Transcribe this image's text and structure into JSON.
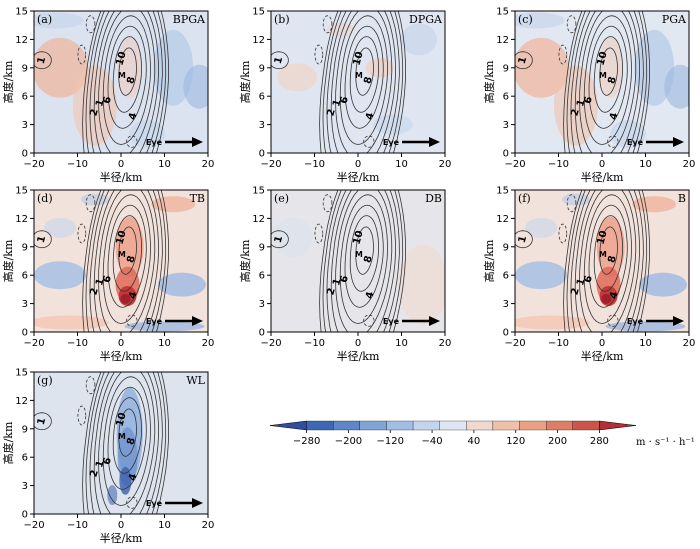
{
  "colors": {
    "neg_strong": "#3a5fae",
    "neg_mid": "#8fb0dd",
    "neg_weak": "#c8d9ee",
    "neutral": "#dcdcdc",
    "pos_weak": "#f2cdbd",
    "pos_mid": "#eb9a82",
    "pos_strong": "#c8393a",
    "contour": "#333333"
  },
  "colorbar": {
    "levels": [
      -280,
      -200,
      -120,
      -40,
      40,
      120,
      200,
      280
    ],
    "tick_labels": [
      "−280",
      "−200",
      "−120",
      "−40",
      "40",
      "120",
      "200",
      "280"
    ],
    "units": "m · s⁻¹ · h⁻¹",
    "colors": [
      "#2f4e9c",
      "#3c68b6",
      "#5c87c9",
      "#7ea4d8",
      "#a1bee4",
      "#c3d5ee",
      "#dde6f2",
      "#f0d8cc",
      "#f2c0a8",
      "#eca081",
      "#e07e63",
      "#cc5548",
      "#b12f36"
    ]
  },
  "chart_data": [
    {
      "type": "heatmap",
      "letter": "(a)",
      "name": "BPGA",
      "xlabel": "半径/km",
      "ylabel": "高度/km",
      "xlim": [
        -20,
        20
      ],
      "ylim": [
        0,
        15
      ],
      "xticks": [
        "−20",
        "−10",
        "0",
        "10",
        "20"
      ],
      "yticks": [
        "0",
        "3",
        "6",
        "9",
        "12",
        "15"
      ],
      "pattern": "bpga",
      "eye_label": "Eye"
    },
    {
      "type": "heatmap",
      "letter": "(b)",
      "name": "DPGA",
      "xlabel": "半径/km",
      "ylabel": "高度/km",
      "xlim": [
        -20,
        20
      ],
      "ylim": [
        0,
        15
      ],
      "xticks": [
        "−20",
        "−10",
        "0",
        "10",
        "20"
      ],
      "yticks": [
        "0",
        "3",
        "6",
        "9",
        "12",
        "15"
      ],
      "pattern": "dpga",
      "eye_label": "Eye"
    },
    {
      "type": "heatmap",
      "letter": "(c)",
      "name": "PGA",
      "xlabel": "半径/km",
      "ylabel": "高度/km",
      "xlim": [
        -20,
        20
      ],
      "ylim": [
        0,
        15
      ],
      "xticks": [
        "−20",
        "−10",
        "0",
        "10",
        "20"
      ],
      "yticks": [
        "0",
        "3",
        "6",
        "9",
        "12",
        "15"
      ],
      "pattern": "pga",
      "eye_label": "Eye"
    },
    {
      "type": "heatmap",
      "letter": "(d)",
      "name": "TB",
      "xlabel": "半径/km",
      "ylabel": "高度/km",
      "xlim": [
        -20,
        20
      ],
      "ylim": [
        0,
        15
      ],
      "xticks": [
        "−20",
        "−10",
        "0",
        "10",
        "20"
      ],
      "yticks": [
        "0",
        "3",
        "6",
        "9",
        "12",
        "15"
      ],
      "pattern": "tb",
      "eye_label": "Eye"
    },
    {
      "type": "heatmap",
      "letter": "(e)",
      "name": "DB",
      "xlabel": "半径/km",
      "ylabel": "高度/km",
      "xlim": [
        -20,
        20
      ],
      "ylim": [
        0,
        15
      ],
      "xticks": [
        "−20",
        "−10",
        "0",
        "10",
        "20"
      ],
      "yticks": [
        "0",
        "3",
        "6",
        "9",
        "12",
        "15"
      ],
      "pattern": "db",
      "eye_label": "Eye"
    },
    {
      "type": "heatmap",
      "letter": "(f)",
      "name": "B",
      "xlabel": "半径/km",
      "ylabel": "高度/km",
      "xlim": [
        -20,
        20
      ],
      "ylim": [
        0,
        15
      ],
      "xticks": [
        "−20",
        "−10",
        "0",
        "10",
        "20"
      ],
      "yticks": [
        "0",
        "3",
        "6",
        "9",
        "12",
        "15"
      ],
      "pattern": "tb",
      "eye_label": "Eye"
    },
    {
      "type": "heatmap",
      "letter": "(g)",
      "name": "WL",
      "xlabel": "半径/km",
      "ylabel": "高度/km",
      "xlim": [
        -20,
        20
      ],
      "ylim": [
        0,
        15
      ],
      "xticks": [
        "−20",
        "−10",
        "0",
        "10",
        "20"
      ],
      "yticks": [
        "0",
        "3",
        "6",
        "9",
        "12",
        "15"
      ],
      "pattern": "wl",
      "eye_label": "Eye"
    }
  ],
  "contour_labels": [
    "1",
    "2",
    "6",
    "10",
    "8",
    "4",
    "M"
  ]
}
